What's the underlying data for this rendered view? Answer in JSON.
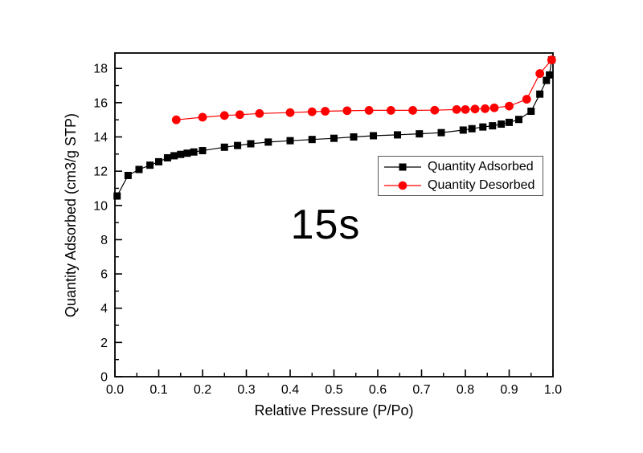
{
  "figure": {
    "background_color": "#ffffff",
    "axis_color": "#000000",
    "legend_border_color": "#5a5a5a"
  },
  "chart_data": {
    "type": "line",
    "title": "",
    "xlabel": "Relative Pressure (P/Po)",
    "ylabel": "Quantity Adsorbed (cm3/g STP)",
    "annotation": "15s",
    "xlim": [
      0.0,
      1.0
    ],
    "ylim": [
      0,
      18.9
    ],
    "xticks": [
      "0.0",
      "0.1",
      "0.2",
      "0.3",
      "0.4",
      "0.5",
      "0.6",
      "0.7",
      "0.8",
      "0.9",
      "1.0"
    ],
    "yticks": [
      "0",
      "2",
      "4",
      "6",
      "8",
      "10",
      "12",
      "14",
      "16",
      "18"
    ],
    "x_minor_tick_step": 0.05,
    "y_minor_tick_step": 1,
    "grid": false,
    "legend_position": "inside-middle-right",
    "series": [
      {
        "name": "Quantity Adsorbed",
        "color": "#000000",
        "marker": "square",
        "points": [
          [
            0.005,
            10.55
          ],
          [
            0.03,
            11.75
          ],
          [
            0.055,
            12.1
          ],
          [
            0.08,
            12.35
          ],
          [
            0.1,
            12.55
          ],
          [
            0.12,
            12.78
          ],
          [
            0.135,
            12.9
          ],
          [
            0.15,
            12.98
          ],
          [
            0.165,
            13.05
          ],
          [
            0.18,
            13.12
          ],
          [
            0.2,
            13.2
          ],
          [
            0.25,
            13.4
          ],
          [
            0.28,
            13.5
          ],
          [
            0.31,
            13.6
          ],
          [
            0.35,
            13.7
          ],
          [
            0.4,
            13.78
          ],
          [
            0.45,
            13.85
          ],
          [
            0.5,
            13.92
          ],
          [
            0.545,
            14.0
          ],
          [
            0.59,
            14.07
          ],
          [
            0.645,
            14.12
          ],
          [
            0.695,
            14.18
          ],
          [
            0.745,
            14.25
          ],
          [
            0.795,
            14.4
          ],
          [
            0.815,
            14.48
          ],
          [
            0.84,
            14.58
          ],
          [
            0.862,
            14.65
          ],
          [
            0.882,
            14.75
          ],
          [
            0.9,
            14.85
          ],
          [
            0.922,
            15.02
          ],
          [
            0.95,
            15.5
          ],
          [
            0.97,
            16.5
          ],
          [
            0.985,
            17.3
          ],
          [
            0.992,
            17.62
          ],
          [
            0.997,
            18.5
          ]
        ]
      },
      {
        "name": "Quantity Desorbed",
        "color": "#ff0000",
        "marker": "circle",
        "points": [
          [
            0.14,
            15.0
          ],
          [
            0.2,
            15.15
          ],
          [
            0.25,
            15.25
          ],
          [
            0.285,
            15.3
          ],
          [
            0.33,
            15.37
          ],
          [
            0.4,
            15.42
          ],
          [
            0.45,
            15.47
          ],
          [
            0.48,
            15.5
          ],
          [
            0.53,
            15.53
          ],
          [
            0.58,
            15.55
          ],
          [
            0.63,
            15.55
          ],
          [
            0.68,
            15.55
          ],
          [
            0.73,
            15.56
          ],
          [
            0.78,
            15.6
          ],
          [
            0.8,
            15.6
          ],
          [
            0.822,
            15.63
          ],
          [
            0.845,
            15.65
          ],
          [
            0.866,
            15.7
          ],
          [
            0.9,
            15.8
          ],
          [
            0.94,
            16.2
          ],
          [
            0.97,
            17.7
          ],
          [
            0.997,
            18.5
          ]
        ]
      }
    ]
  }
}
